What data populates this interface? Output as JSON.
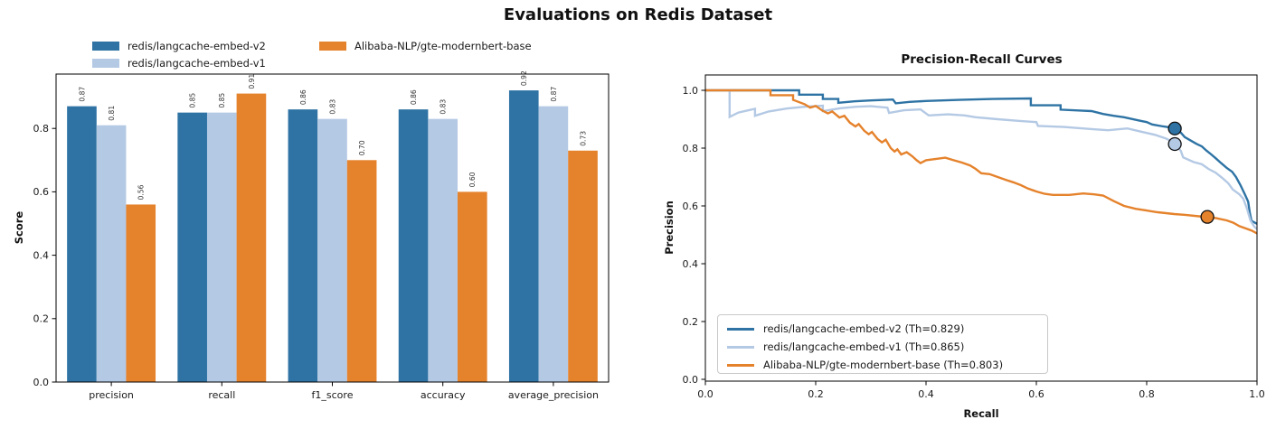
{
  "figure_title": "Evaluations on Redis Dataset",
  "colors": {
    "v2": "#2e73a4",
    "v1": "#b4c9e4",
    "bert": "#e5822c",
    "frame": "#000000",
    "text": "#1a1a1a",
    "bar_label": "#333333",
    "legend_border": "#c9c9c9"
  },
  "chart_data": [
    {
      "type": "bar",
      "title": "",
      "xlabel": "",
      "ylabel": "Score",
      "categories": [
        "precision",
        "recall",
        "f1_score",
        "accuracy",
        "average_precision"
      ],
      "series": [
        {
          "name": "redis/langcache-embed-v2",
          "color_key": "v2",
          "values": [
            0.87,
            0.85,
            0.86,
            0.86,
            0.92
          ]
        },
        {
          "name": "redis/langcache-embed-v1",
          "color_key": "v1",
          "values": [
            0.81,
            0.85,
            0.83,
            0.83,
            0.87
          ]
        },
        {
          "name": "Alibaba-NLP/gte-modernbert-base",
          "color_key": "bert",
          "values": [
            0.56,
            0.91,
            0.7,
            0.6,
            0.73
          ]
        }
      ],
      "yticks": [
        0.0,
        0.2,
        0.4,
        0.6,
        0.8
      ],
      "ylim": [
        0,
        0.974
      ],
      "bar_value_labels": true,
      "grid": false,
      "legend_position": "upper left (above axes)"
    },
    {
      "type": "line",
      "title": "Precision-Recall Curves",
      "xlabel": "Recall",
      "ylabel": "Precision",
      "xlim": [
        0.0,
        1.0
      ],
      "ylim": [
        0.0,
        1.05
      ],
      "xticks": [
        0.0,
        0.2,
        0.4,
        0.6,
        0.8,
        1.0
      ],
      "yticks": [
        0.0,
        0.2,
        0.4,
        0.6,
        0.8,
        1.0
      ],
      "grid": false,
      "legend_position": "lower left",
      "series": [
        {
          "name": "redis/langcache-embed-v2 (Th=0.829)",
          "color_key": "v2",
          "threshold_marker": [
            0.851,
            0.868
          ],
          "points": [
            [
              0,
              1
            ],
            [
              0.17,
              1
            ],
            [
              0.17,
              0.985
            ],
            [
              0.213,
              0.985
            ],
            [
              0.213,
              0.97
            ],
            [
              0.241,
              0.97
            ],
            [
              0.241,
              0.957
            ],
            [
              0.27,
              0.962
            ],
            [
              0.3,
              0.965
            ],
            [
              0.34,
              0.968
            ],
            [
              0.345,
              0.955
            ],
            [
              0.37,
              0.96
            ],
            [
              0.4,
              0.963
            ],
            [
              0.46,
              0.967
            ],
            [
              0.52,
              0.97
            ],
            [
              0.59,
              0.972
            ],
            [
              0.59,
              0.948
            ],
            [
              0.644,
              0.948
            ],
            [
              0.644,
              0.933
            ],
            [
              0.68,
              0.93
            ],
            [
              0.7,
              0.928
            ],
            [
              0.721,
              0.918
            ],
            [
              0.74,
              0.912
            ],
            [
              0.759,
              0.907
            ],
            [
              0.787,
              0.895
            ],
            [
              0.8,
              0.89
            ],
            [
              0.81,
              0.882
            ],
            [
              0.83,
              0.875
            ],
            [
              0.845,
              0.871
            ],
            [
              0.858,
              0.862
            ],
            [
              0.869,
              0.838
            ],
            [
              0.88,
              0.826
            ],
            [
              0.89,
              0.815
            ],
            [
              0.9,
              0.806
            ],
            [
              0.908,
              0.792
            ],
            [
              0.917,
              0.778
            ],
            [
              0.925,
              0.765
            ],
            [
              0.935,
              0.748
            ],
            [
              0.945,
              0.732
            ],
            [
              0.955,
              0.718
            ],
            [
              0.962,
              0.7
            ],
            [
              0.97,
              0.672
            ],
            [
              0.978,
              0.64
            ],
            [
              0.984,
              0.615
            ],
            [
              0.987,
              0.575
            ],
            [
              0.99,
              0.548
            ],
            [
              1,
              0.538
            ]
          ]
        },
        {
          "name": "redis/langcache-embed-v1 (Th=0.865)",
          "color_key": "v1",
          "threshold_marker": [
            0.851,
            0.814
          ],
          "points": [
            [
              0,
              1
            ],
            [
              0.044,
              1
            ],
            [
              0.044,
              0.908
            ],
            [
              0.06,
              0.923
            ],
            [
              0.08,
              0.932
            ],
            [
              0.09,
              0.936
            ],
            [
              0.09,
              0.912
            ],
            [
              0.115,
              0.927
            ],
            [
              0.147,
              0.937
            ],
            [
              0.18,
              0.943
            ],
            [
              0.213,
              0.947
            ],
            [
              0.213,
              0.928
            ],
            [
              0.245,
              0.938
            ],
            [
              0.274,
              0.943
            ],
            [
              0.3,
              0.945
            ],
            [
              0.33,
              0.94
            ],
            [
              0.333,
              0.922
            ],
            [
              0.36,
              0.931
            ],
            [
              0.39,
              0.934
            ],
            [
              0.405,
              0.913
            ],
            [
              0.44,
              0.917
            ],
            [
              0.47,
              0.913
            ],
            [
              0.49,
              0.907
            ],
            [
              0.53,
              0.9
            ],
            [
              0.57,
              0.894
            ],
            [
              0.6,
              0.89
            ],
            [
              0.603,
              0.877
            ],
            [
              0.65,
              0.873
            ],
            [
              0.7,
              0.866
            ],
            [
              0.73,
              0.862
            ],
            [
              0.765,
              0.868
            ],
            [
              0.79,
              0.857
            ],
            [
              0.815,
              0.846
            ],
            [
              0.835,
              0.833
            ],
            [
              0.85,
              0.82
            ],
            [
              0.862,
              0.79
            ],
            [
              0.866,
              0.768
            ],
            [
              0.885,
              0.752
            ],
            [
              0.9,
              0.744
            ],
            [
              0.912,
              0.728
            ],
            [
              0.925,
              0.715
            ],
            [
              0.938,
              0.695
            ],
            [
              0.948,
              0.678
            ],
            [
              0.956,
              0.657
            ],
            [
              0.968,
              0.64
            ],
            [
              0.975,
              0.625
            ],
            [
              0.982,
              0.59
            ],
            [
              0.988,
              0.55
            ],
            [
              0.995,
              0.528
            ],
            [
              1,
              0.52
            ]
          ]
        },
        {
          "name": "Alibaba-NLP/gte-modernbert-base (Th=0.803)",
          "color_key": "bert",
          "threshold_marker": [
            0.91,
            0.562
          ],
          "points": [
            [
              0,
              1
            ],
            [
              0.118,
              1
            ],
            [
              0.118,
              0.983
            ],
            [
              0.159,
              0.983
            ],
            [
              0.159,
              0.967
            ],
            [
              0.18,
              0.952
            ],
            [
              0.19,
              0.94
            ],
            [
              0.2,
              0.946
            ],
            [
              0.212,
              0.93
            ],
            [
              0.222,
              0.92
            ],
            [
              0.23,
              0.927
            ],
            [
              0.243,
              0.906
            ],
            [
              0.252,
              0.912
            ],
            [
              0.262,
              0.888
            ],
            [
              0.272,
              0.875
            ],
            [
              0.278,
              0.883
            ],
            [
              0.288,
              0.86
            ],
            [
              0.296,
              0.848
            ],
            [
              0.302,
              0.856
            ],
            [
              0.312,
              0.832
            ],
            [
              0.32,
              0.82
            ],
            [
              0.327,
              0.829
            ],
            [
              0.336,
              0.8
            ],
            [
              0.343,
              0.788
            ],
            [
              0.348,
              0.796
            ],
            [
              0.355,
              0.778
            ],
            [
              0.365,
              0.786
            ],
            [
              0.375,
              0.772
            ],
            [
              0.383,
              0.758
            ],
            [
              0.39,
              0.748
            ],
            [
              0.4,
              0.758
            ],
            [
              0.42,
              0.763
            ],
            [
              0.435,
              0.767
            ],
            [
              0.45,
              0.758
            ],
            [
              0.465,
              0.75
            ],
            [
              0.48,
              0.74
            ],
            [
              0.49,
              0.728
            ],
            [
              0.5,
              0.713
            ],
            [
              0.515,
              0.71
            ],
            [
              0.53,
              0.7
            ],
            [
              0.545,
              0.69
            ],
            [
              0.558,
              0.682
            ],
            [
              0.572,
              0.672
            ],
            [
              0.585,
              0.66
            ],
            [
              0.6,
              0.65
            ],
            [
              0.615,
              0.642
            ],
            [
              0.63,
              0.638
            ],
            [
              0.66,
              0.638
            ],
            [
              0.685,
              0.643
            ],
            [
              0.705,
              0.64
            ],
            [
              0.721,
              0.636
            ],
            [
              0.74,
              0.617
            ],
            [
              0.759,
              0.6
            ],
            [
              0.78,
              0.59
            ],
            [
              0.8,
              0.584
            ],
            [
              0.82,
              0.578
            ],
            [
              0.85,
              0.572
            ],
            [
              0.87,
              0.569
            ],
            [
              0.895,
              0.564
            ],
            [
              0.925,
              0.558
            ],
            [
              0.945,
              0.55
            ],
            [
              0.957,
              0.542
            ],
            [
              0.968,
              0.53
            ],
            [
              0.98,
              0.522
            ],
            [
              0.99,
              0.515
            ],
            [
              1,
              0.505
            ]
          ]
        }
      ]
    }
  ]
}
